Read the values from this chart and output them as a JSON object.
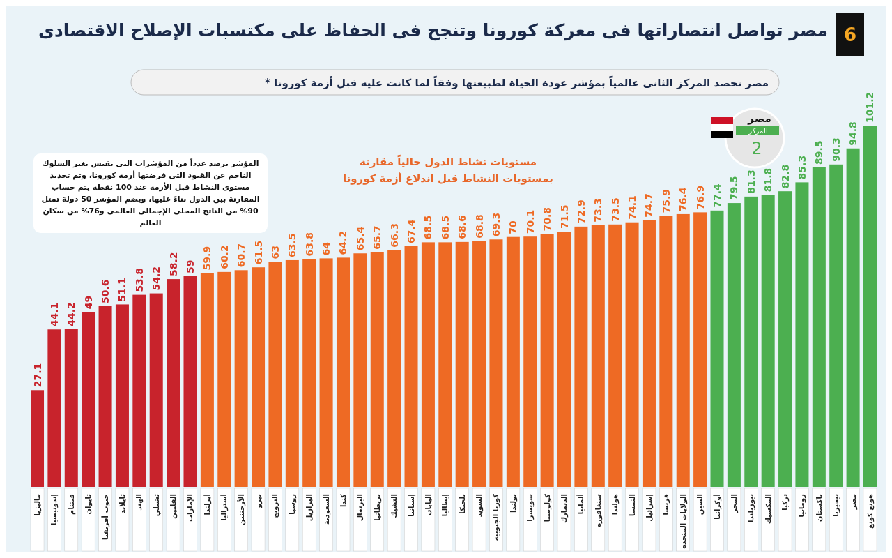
{
  "chart_data": {
    "type": "bar",
    "title": "مصر تواصل انتصاراتها فى معركة كورونا وتنجح فى الحفاظ على مكتسبات الإصلاح الاقتصادى",
    "subtitle": "مصر تحصد المركز الثانى عالمياً بمؤشر عودة الحياة لطبيعتها وفقاً لما كانت عليه قبل أزمة كورونا  *",
    "annotations": [
      "6",
      "مستويات نشاط الدول حالياً مقارنة بمستويات النشاط قبل اندلاع أزمة كورونا",
      "المؤشر يرصد عدداً من المؤشرات التى تقيس تغير السلوك الناجم عن القيود التى فرضتها أزمة كورونا، وتم تحديد مستوى النشاط قبل الأزمة عند 100 نقطة يتم حساب المقارنة بين الدول بناءً عليها، ويضم المؤشر 50 دولة تمثل 90% من الناتج المحلى الإجمالى العالمى و76% من سكان العالم",
      "مصر",
      "المركز",
      "2"
    ],
    "categories": [
      "ماليزيا",
      "إندونيسيا",
      "فيتنام",
      "تايوان",
      "جنوب أفريقيا",
      "تايلاند",
      "الهند",
      "تشيلي",
      "الفلبين",
      "الإمارات",
      "أيرلندا",
      "أستراليا",
      "الأرجنتين",
      "بيرو",
      "النرويج",
      "روسيا",
      "البرازيل",
      "السعودية",
      "كندا",
      "البرتغال",
      "بريطانيا",
      "التشيك",
      "إسبانيا",
      "اليابان",
      "إيطاليا",
      "بلجيكا",
      "السويد",
      "كوريا الجنوبية",
      "بولندا",
      "سويسرا",
      "كولومبيا",
      "الدنمارك",
      "ألمانيا",
      "سنغافورة",
      "هولندا",
      "النمسا",
      "إسرائيل",
      "فرنسا",
      "الولايات المتحدة",
      "الصين",
      "أوكرانيا",
      "المجر",
      "نيوزيلندا",
      "المكسيك",
      "تركيا",
      "رومانيا",
      "باكستان",
      "نيجيريا",
      "مصر",
      "هونغ كونغ"
    ],
    "values": [
      27.1,
      44.1,
      44.2,
      49,
      50.6,
      51.1,
      53.8,
      54.2,
      58.2,
      59,
      59.9,
      60.2,
      60.7,
      61.5,
      63,
      63.5,
      63.8,
      64,
      64.2,
      65.4,
      65.7,
      66.3,
      67.4,
      68.5,
      68.5,
      68.6,
      68.8,
      69.3,
      70,
      70.1,
      70.8,
      71.5,
      72.9,
      73.3,
      73.5,
      74.1,
      74.7,
      75.9,
      76.4,
      76.9,
      77.4,
      79.5,
      81.3,
      81.8,
      82.8,
      85.3,
      89.5,
      90.3,
      94.8,
      101.2
    ],
    "colors": [
      "#c8232c",
      "#c8232c",
      "#c8232c",
      "#c8232c",
      "#c8232c",
      "#c8232c",
      "#c8232c",
      "#c8232c",
      "#c8232c",
      "#c8232c",
      "#ee6a24",
      "#ee6a24",
      "#ee6a24",
      "#ee6a24",
      "#ee6a24",
      "#ee6a24",
      "#ee6a24",
      "#ee6a24",
      "#ee6a24",
      "#ee6a24",
      "#ee6a24",
      "#ee6a24",
      "#ee6a24",
      "#ee6a24",
      "#ee6a24",
      "#ee6a24",
      "#ee6a24",
      "#ee6a24",
      "#ee6a24",
      "#ee6a24",
      "#ee6a24",
      "#ee6a24",
      "#ee6a24",
      "#ee6a24",
      "#ee6a24",
      "#ee6a24",
      "#ee6a24",
      "#ee6a24",
      "#ee6a24",
      "#ee6a24",
      "#4caf50",
      "#4caf50",
      "#4caf50",
      "#4caf50",
      "#4caf50",
      "#4caf50",
      "#4caf50",
      "#4caf50",
      "#4caf50",
      "#4caf50"
    ],
    "data_labels": true
  }
}
